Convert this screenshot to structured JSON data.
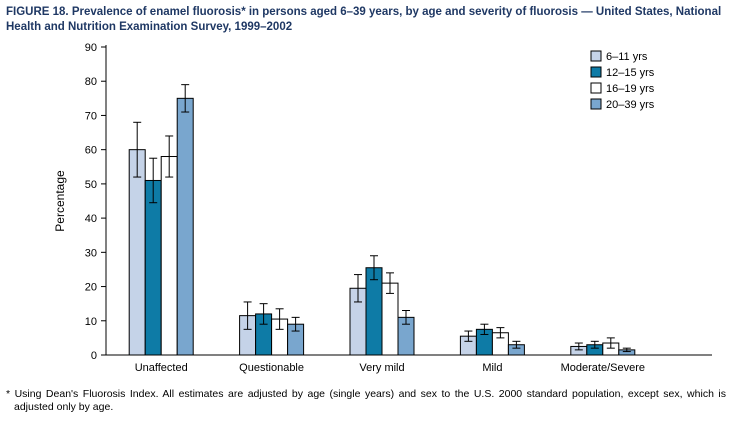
{
  "title": "FIGURE 18. Prevalence of enamel fluorosis* in persons aged 6–39 years, by age and severity of fluorosis — United States, National Health and Nutrition Examination Survey, 1999–2002",
  "footnote": "* Using Dean's Fluorosis Index. All estimates are adjusted by age (single years) and sex to the U.S. 2000 standard population, except sex, which is adjusted only by age.",
  "chart_data": {
    "type": "bar",
    "title": "Prevalence of enamel fluorosis in persons aged 6–39 years, by age and severity of fluorosis",
    "xlabel": "",
    "ylabel": "Percentage",
    "ylim": [
      0,
      90
    ],
    "ytick_interval": 10,
    "grid": false,
    "legend_position": "top-right",
    "categories": [
      "Unaffected",
      "Questionable",
      "Very mild",
      "Mild",
      "Moderate/Severe"
    ],
    "series": [
      {
        "name": "6–11 yrs",
        "color": "#c5d3e8",
        "values": [
          60,
          11.5,
          19.5,
          5.5,
          2.5
        ],
        "errors": [
          8,
          4,
          4,
          1.5,
          1
        ]
      },
      {
        "name": "12–15 yrs",
        "color": "#0e7ba6",
        "values": [
          51,
          12,
          25.5,
          7.5,
          3
        ],
        "errors": [
          6.5,
          3,
          3.5,
          1.5,
          1
        ]
      },
      {
        "name": "16–19 yrs",
        "color": "#ffffff",
        "values": [
          58,
          10.5,
          21,
          6.5,
          3.5
        ],
        "errors": [
          6,
          3,
          3,
          1.5,
          1.5
        ]
      },
      {
        "name": "20–39 yrs",
        "color": "#79a6ce",
        "values": [
          75,
          9,
          11,
          3,
          1.5
        ],
        "errors": [
          4,
          2,
          2,
          1,
          0.5
        ]
      }
    ]
  }
}
